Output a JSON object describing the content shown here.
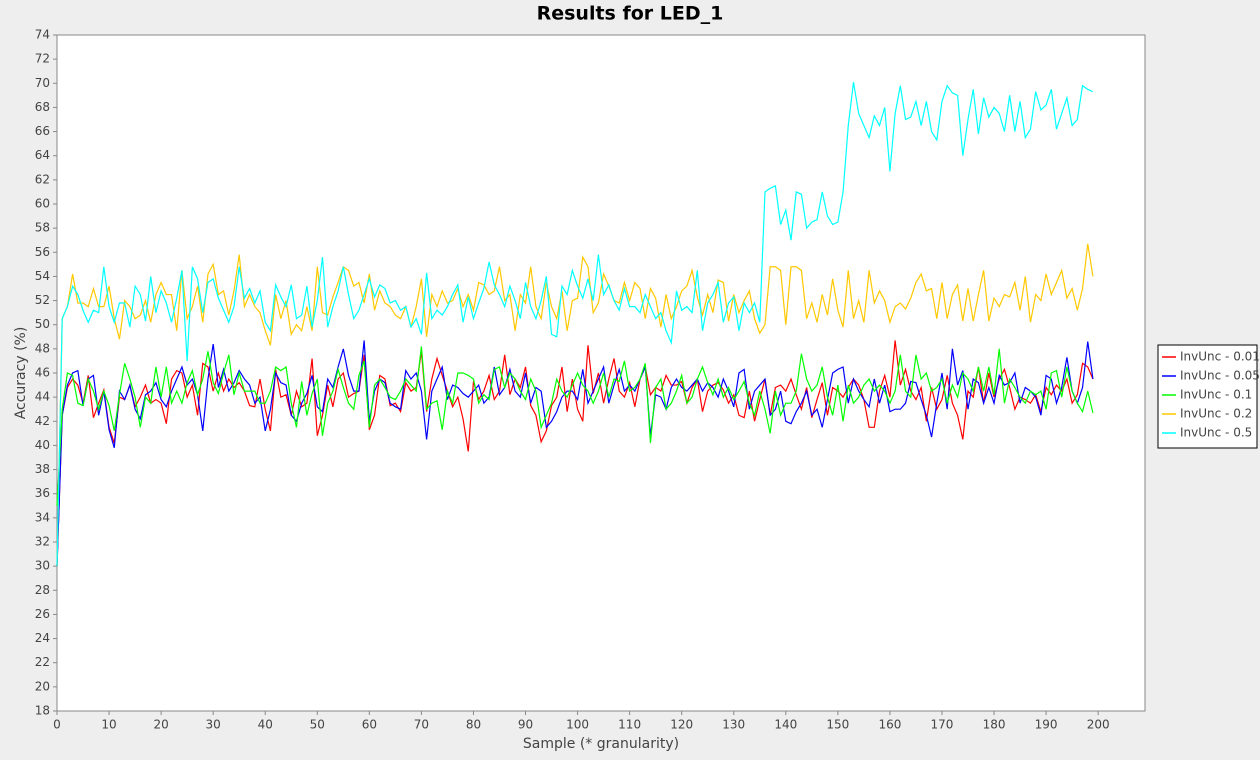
{
  "chart_data": {
    "type": "line",
    "title": "Results for LED_1",
    "x_label": "Sample (* granularity)",
    "y_label": "Accuracy (%)",
    "xlim": [
      0,
      209
    ],
    "ylim": [
      18,
      74
    ],
    "xticks": [
      0,
      10,
      20,
      30,
      40,
      50,
      60,
      70,
      80,
      90,
      100,
      110,
      120,
      130,
      140,
      150,
      160,
      170,
      180,
      190,
      200
    ],
    "yticks": [
      18,
      20,
      22,
      24,
      26,
      28,
      30,
      32,
      34,
      36,
      38,
      40,
      42,
      44,
      46,
      48,
      50,
      52,
      54,
      56,
      58,
      60,
      62,
      64,
      66,
      68,
      70,
      72,
      74
    ],
    "grid": false,
    "legend": "right",
    "x": [
      0,
      1,
      2,
      3,
      4,
      5,
      6,
      7,
      8,
      9,
      10,
      11,
      12,
      13,
      14,
      15,
      16,
      17,
      18,
      19,
      20,
      21,
      22,
      23,
      24,
      25,
      26,
      27,
      28,
      29,
      30,
      31,
      32,
      33,
      34,
      35,
      36,
      37,
      38,
      39,
      40,
      41,
      42,
      43,
      44,
      45,
      46,
      47,
      48,
      49,
      50,
      51,
      52,
      53,
      54,
      55,
      56,
      57,
      58,
      59,
      60,
      61,
      62,
      63,
      64,
      65,
      66,
      67,
      68,
      69,
      70,
      71,
      72,
      73,
      74,
      75,
      76,
      77,
      78,
      79,
      80,
      81,
      82,
      83,
      84,
      85,
      86,
      87,
      88,
      89,
      90,
      91,
      92,
      93,
      94,
      95,
      96,
      97,
      98,
      99,
      100,
      101,
      102,
      103,
      104,
      105,
      106,
      107,
      108,
      109,
      110,
      111,
      112,
      113,
      114,
      115,
      116,
      117,
      118,
      119,
      120,
      121,
      122,
      123,
      124,
      125,
      126,
      127,
      128,
      129,
      130,
      131,
      132,
      133,
      134,
      135,
      136,
      137,
      138,
      139,
      140,
      141,
      142,
      143,
      144,
      145,
      146,
      147,
      148,
      149,
      150,
      151,
      152,
      153,
      154,
      155,
      156,
      157,
      158,
      159,
      160,
      161,
      162,
      163,
      164,
      165,
      166,
      167,
      168,
      169,
      170,
      171,
      172,
      173,
      174,
      175,
      176,
      177,
      178,
      179,
      180,
      181,
      182,
      183,
      184,
      185,
      186,
      187,
      188,
      189,
      190,
      191,
      192,
      193,
      194,
      195,
      196,
      197,
      198,
      199
    ],
    "series": [
      {
        "name": "InvUnc - 0.01",
        "color": "#ff0000",
        "values": [
          30,
          42.5,
          44.8,
          45.5,
          45,
          43.5,
          45.8,
          42.3,
          43.5,
          44.6,
          41.5,
          40.2,
          44,
          43.8,
          45,
          43.2,
          44,
          45,
          43.5,
          43.8,
          43.5,
          41.8,
          45.5,
          46.2,
          46,
          44,
          45,
          42.5,
          46.8,
          46.5,
          44.5,
          46,
          44.5,
          45.5,
          44.8,
          45.2,
          44.5,
          43.3,
          43.2,
          45.5,
          43,
          41.2,
          46.3,
          44,
          44.2,
          42.5,
          44.5,
          43.2,
          43.5,
          47.2,
          40.8,
          42.5,
          45,
          43.2,
          45.5,
          46,
          44,
          44.3,
          44.5,
          47.5,
          41.3,
          42.5,
          45.8,
          45.5,
          43.3,
          43.5,
          42.8,
          45.2,
          44.5,
          44.8,
          47.8,
          42.8,
          45.5,
          47.2,
          45.8,
          44.5,
          43.2,
          44,
          42.2,
          39.5,
          45.3,
          43.8,
          44.5,
          45.8,
          43.8,
          44.5,
          47.5,
          44.2,
          45.5,
          44.8,
          46.5,
          43.3,
          42.5,
          40.3,
          41.2,
          43.3,
          44,
          46.5,
          42.8,
          45.5,
          43,
          42,
          48.3,
          44.3,
          46,
          43.5,
          45.5,
          47.2,
          44.5,
          44,
          45.2,
          43.2,
          45.5,
          46.5,
          44.2,
          44.8,
          44.5,
          45.8,
          45,
          45,
          45.3,
          43.5,
          44.8,
          45.5,
          42.8,
          44.5,
          45,
          45.2,
          44.6,
          43.5,
          44.2,
          42.5,
          42.3,
          44.5,
          42,
          43.8,
          45.5,
          42.5,
          44.8,
          45,
          44.5,
          45.5,
          44.2,
          43,
          44.8,
          42.3,
          43.8,
          45.2,
          42.5,
          44.8,
          44.5,
          44,
          44.8,
          45.5,
          45,
          43.8,
          41.5,
          41.5,
          44.5,
          45.8,
          44,
          48.7,
          45,
          46.3,
          44.5,
          43.8,
          44.8,
          42,
          44.8,
          43,
          43.8,
          45.8,
          43.5,
          42.5,
          40.5,
          44.5,
          44,
          46.5,
          43.5,
          46,
          44,
          45.5,
          46.3,
          44.8,
          43,
          44,
          43.8,
          43.5,
          44.2,
          42.8,
          44.8,
          44.2,
          45,
          44.5,
          45.5,
          43.5,
          44.2,
          46.8,
          46.5,
          45.5
        ]
      },
      {
        "name": "InvUnc - 0.05",
        "color": "#0000ff",
        "values": [
          30,
          42.5,
          45,
          46,
          46.2,
          43.3,
          45.5,
          45.8,
          42.5,
          44.5,
          41.3,
          39.8,
          44.5,
          43.8,
          45,
          43,
          42.2,
          44.2,
          44.5,
          45.2,
          43.8,
          43.2,
          44.5,
          45.5,
          46.5,
          45,
          45.5,
          44.2,
          41.2,
          45.5,
          48.4,
          44.8,
          46.3,
          44.5,
          45.2,
          46.2,
          45.5,
          45,
          43.5,
          44,
          41.2,
          43,
          46,
          45.2,
          45,
          42.5,
          42,
          43.5,
          44.3,
          45.8,
          43.2,
          42.8,
          45.5,
          44.8,
          46.5,
          48,
          45.8,
          44.5,
          44.5,
          48.7,
          42,
          44.5,
          45.5,
          45.2,
          43.5,
          43.2,
          43,
          46.2,
          45.5,
          46,
          44.5,
          40.5,
          44.5,
          45.5,
          46.5,
          43.8,
          45,
          44.8,
          44.3,
          44,
          44.5,
          45,
          43.5,
          44,
          46.5,
          44.2,
          44.8,
          46.3,
          44.5,
          44,
          46,
          43.5,
          44.8,
          44.5,
          41.5,
          42,
          42.8,
          44,
          44.5,
          44.5,
          43.8,
          46.3,
          43.5,
          44.5,
          45.5,
          46.5,
          43.5,
          45,
          46.3,
          44.5,
          45,
          44.5,
          45.5,
          46.5,
          40.8,
          44.2,
          44,
          43,
          44.8,
          45.5,
          44.8,
          44.5,
          45,
          45.5,
          44.5,
          45.2,
          44.8,
          44,
          45.5,
          44.5,
          43.2,
          46,
          46.3,
          43,
          44.5,
          45,
          45.5,
          42.5,
          43,
          44.5,
          42,
          41.8,
          42.8,
          43.5,
          44.5,
          42.5,
          43,
          41.5,
          43.8,
          46,
          46.3,
          46.5,
          43.5,
          45.5,
          44.5,
          43.8,
          43.2,
          45.5,
          43.5,
          45,
          42.8,
          43,
          43,
          43.5,
          45.3,
          45.2,
          43.8,
          42.5,
          40.7,
          43.5,
          46,
          43,
          48,
          45,
          46.2,
          43,
          45.5,
          45.2,
          43.5,
          44.8,
          43.5,
          45.8,
          45,
          45.2,
          46,
          43.5,
          44.8,
          44.5,
          44,
          42.5,
          45.8,
          45.5,
          43.5,
          44.8,
          47.3,
          44.5,
          43.5,
          44.8,
          48.6,
          45.5
        ]
      },
      {
        "name": "InvUnc - 0.1",
        "color": "#00ff00",
        "values": [
          35,
          43,
          46,
          45.8,
          43.5,
          43.3,
          45.5,
          44.5,
          43,
          44.5,
          43.3,
          41.2,
          44.2,
          46.8,
          45.5,
          44,
          41.5,
          44,
          43.5,
          46.5,
          44,
          46.5,
          43.5,
          44.5,
          43.5,
          45.2,
          46.2,
          44.2,
          45.5,
          47.8,
          45.2,
          44.3,
          46,
          47.5,
          44.2,
          46,
          44.5,
          44.5,
          44.5,
          43.5,
          43.5,
          44.5,
          46.5,
          46.2,
          46.5,
          43.5,
          41.5,
          45.3,
          42.5,
          44.3,
          45.5,
          40.8,
          43.5,
          44.5,
          46.3,
          44.8,
          43.5,
          43,
          45.8,
          47,
          41.5,
          45,
          45.5,
          44.8,
          44,
          43.8,
          44.5,
          45.5,
          45,
          44.5,
          48.2,
          43,
          43.5,
          43.7,
          41.3,
          44.5,
          43.5,
          46,
          46,
          45.8,
          45.5,
          43.5,
          44.2,
          43.8,
          46.3,
          46.5,
          44.8,
          46,
          45.5,
          44.5,
          43.8,
          45.5,
          44.5,
          41.5,
          42.5,
          43.5,
          45.5,
          44.5,
          44,
          45,
          46,
          45,
          44.5,
          43.5,
          44.5,
          46,
          44,
          45.5,
          45.3,
          47,
          44.5,
          44.8,
          45.5,
          46.8,
          40.2,
          44.8,
          45.5,
          43,
          43.5,
          44.5,
          45.8,
          43.5,
          44,
          45.5,
          46.5,
          45.2,
          44.2,
          45.5,
          44,
          44.8,
          43.8,
          44.5,
          45.3,
          43.5,
          42.5,
          44.5,
          43,
          41,
          44.5,
          42.5,
          43.5,
          43.5,
          44.5,
          47.6,
          45.5,
          44.5,
          45,
          46.5,
          44,
          42.5,
          45,
          42,
          45,
          43.5,
          44,
          45,
          45.5,
          44.5,
          45,
          44.5,
          43.5,
          44.5,
          47.5,
          44.5,
          44,
          47.5,
          45.5,
          46,
          44.5,
          44.8,
          45.5,
          43.5,
          45,
          44,
          46,
          45.5,
          44.5,
          46.5,
          44.5,
          46.5,
          44.2,
          48,
          43.5,
          45.5,
          44.8,
          44,
          43.5,
          44.5,
          44.2,
          44.5,
          43,
          46,
          46.2,
          44,
          46.5,
          44.5,
          43.5,
          42.8,
          44.5,
          42.7
        ]
      },
      {
        "name": "InvUnc - 0.2",
        "color": "#ffc800",
        "values": [
          30,
          50.5,
          51.5,
          54.2,
          51.8,
          51.8,
          51.5,
          53,
          51.5,
          51.5,
          53.2,
          50.5,
          48.8,
          52,
          51.5,
          50.5,
          50.8,
          52,
          50.2,
          52.5,
          53.5,
          52.5,
          52.5,
          49.5,
          54.5,
          50.5,
          51.5,
          53.2,
          50.2,
          54.2,
          55,
          52.5,
          52.8,
          50.8,
          52.8,
          55.8,
          51.5,
          52.5,
          51.5,
          51,
          49.5,
          48.3,
          52.5,
          50.5,
          52,
          49.2,
          50,
          49.5,
          51.5,
          49.5,
          54.8,
          51,
          50.8,
          52.3,
          53.5,
          54.8,
          54.5,
          53.2,
          53.5,
          51.8,
          54.2,
          51.2,
          52.8,
          51.8,
          51.5,
          50.8,
          50.5,
          51.5,
          49.8,
          51.5,
          53.8,
          49,
          52.5,
          51.5,
          52.8,
          51.8,
          52,
          53,
          51.5,
          52.5,
          51.2,
          53.5,
          53.3,
          52.5,
          52.8,
          54.8,
          52,
          52.5,
          49.5,
          52.5,
          51.8,
          54.8,
          51.5,
          50.5,
          53.5,
          51.5,
          50.5,
          52.8,
          49.5,
          52,
          52.2,
          55.6,
          54.8,
          51,
          51.8,
          54.2,
          53.2,
          52,
          51.8,
          53.5,
          52,
          53.5,
          53,
          50.5,
          53,
          52.2,
          49.8,
          52.5,
          50.5,
          51.5,
          52.8,
          53.2,
          54.5,
          52.3,
          50.8,
          52.5,
          51,
          53.7,
          53.5,
          50.3,
          52.5,
          51,
          52,
          52.8,
          50.5,
          49.3,
          50,
          54.8,
          54.8,
          54.5,
          50,
          54.8,
          54.8,
          54.5,
          50.5,
          51.8,
          50.2,
          52.5,
          50.8,
          53.8,
          51.2,
          49.8,
          54.5,
          50.5,
          52,
          50.2,
          54.5,
          51.8,
          52.8,
          52,
          50.2,
          51.5,
          51.8,
          51.3,
          52.2,
          53.5,
          54.2,
          52.8,
          53,
          50.5,
          53.5,
          50.5,
          52.5,
          53.3,
          50.3,
          53,
          50.3,
          52.5,
          54.5,
          50.3,
          52.2,
          51.5,
          52.5,
          52.3,
          53.5,
          51.2,
          54,
          50.2,
          52.5,
          52,
          54.2,
          52.5,
          53.5,
          54.5,
          52.2,
          53,
          51.2,
          53,
          56.7,
          54
        ]
      },
      {
        "name": "InvUnc - 0.5",
        "color": "#00ffff",
        "values": [
          30,
          50.5,
          51.5,
          53.2,
          52.5,
          51.2,
          50.2,
          51.2,
          51,
          54.8,
          51.5,
          50.2,
          51.8,
          51.8,
          49.8,
          53.2,
          52.5,
          50.3,
          54,
          51,
          52.8,
          51.8,
          50.2,
          52.2,
          54.5,
          47,
          54.8,
          53.8,
          51,
          53.5,
          53.8,
          52.2,
          51.2,
          50.2,
          51.5,
          54.8,
          52.2,
          53,
          51.8,
          52.8,
          50.2,
          49.5,
          53.3,
          52.3,
          51.5,
          53.3,
          50.5,
          50.8,
          53.2,
          49.8,
          52,
          55.6,
          49.8,
          51.5,
          52.8,
          54.8,
          52.5,
          50.5,
          51.2,
          52.5,
          53.8,
          52.3,
          53.3,
          53,
          51.8,
          52,
          51.2,
          51.5,
          49.8,
          50.5,
          49.2,
          54.3,
          50.5,
          51.2,
          50.8,
          51.5,
          52.5,
          53.3,
          50.2,
          52.3,
          50.5,
          51.8,
          53,
          55.2,
          53.3,
          52.5,
          51.5,
          53.2,
          52,
          50.5,
          53.5,
          51.5,
          50.5,
          52,
          54,
          49.2,
          49,
          53.2,
          52.5,
          54.5,
          53.2,
          52.2,
          53.8,
          52,
          55.8,
          52.5,
          53.3,
          52,
          51.2,
          53,
          51.5,
          51.5,
          51,
          52.5,
          51.5,
          50.5,
          51,
          49.5,
          48.5,
          52.8,
          51.2,
          51.5,
          51,
          54.5,
          49.5,
          51.8,
          52.5,
          53.5,
          50.2,
          51.8,
          52.3,
          49.5,
          51.8,
          51,
          51.8,
          50.2,
          61,
          61.3,
          61.5,
          58.3,
          59.5,
          57,
          61,
          60.8,
          58,
          58.5,
          58.7,
          61,
          59,
          58.3,
          58.5,
          61,
          66.5,
          70.1,
          67.5,
          66.5,
          65.5,
          67.3,
          66.5,
          68,
          62.7,
          67.5,
          69.8,
          67,
          67.2,
          68.5,
          66.5,
          68.5,
          66,
          65.3,
          68.5,
          69.8,
          69.2,
          69,
          64,
          67,
          69.5,
          65.8,
          68.8,
          67.2,
          68,
          67.5,
          66,
          69,
          66,
          68.5,
          65.5,
          66.2,
          69.3,
          67.8,
          68.2,
          69.5,
          66.2,
          67.5,
          68.8,
          66.5,
          67,
          69.8,
          69.5,
          69.3
        ]
      }
    ]
  }
}
